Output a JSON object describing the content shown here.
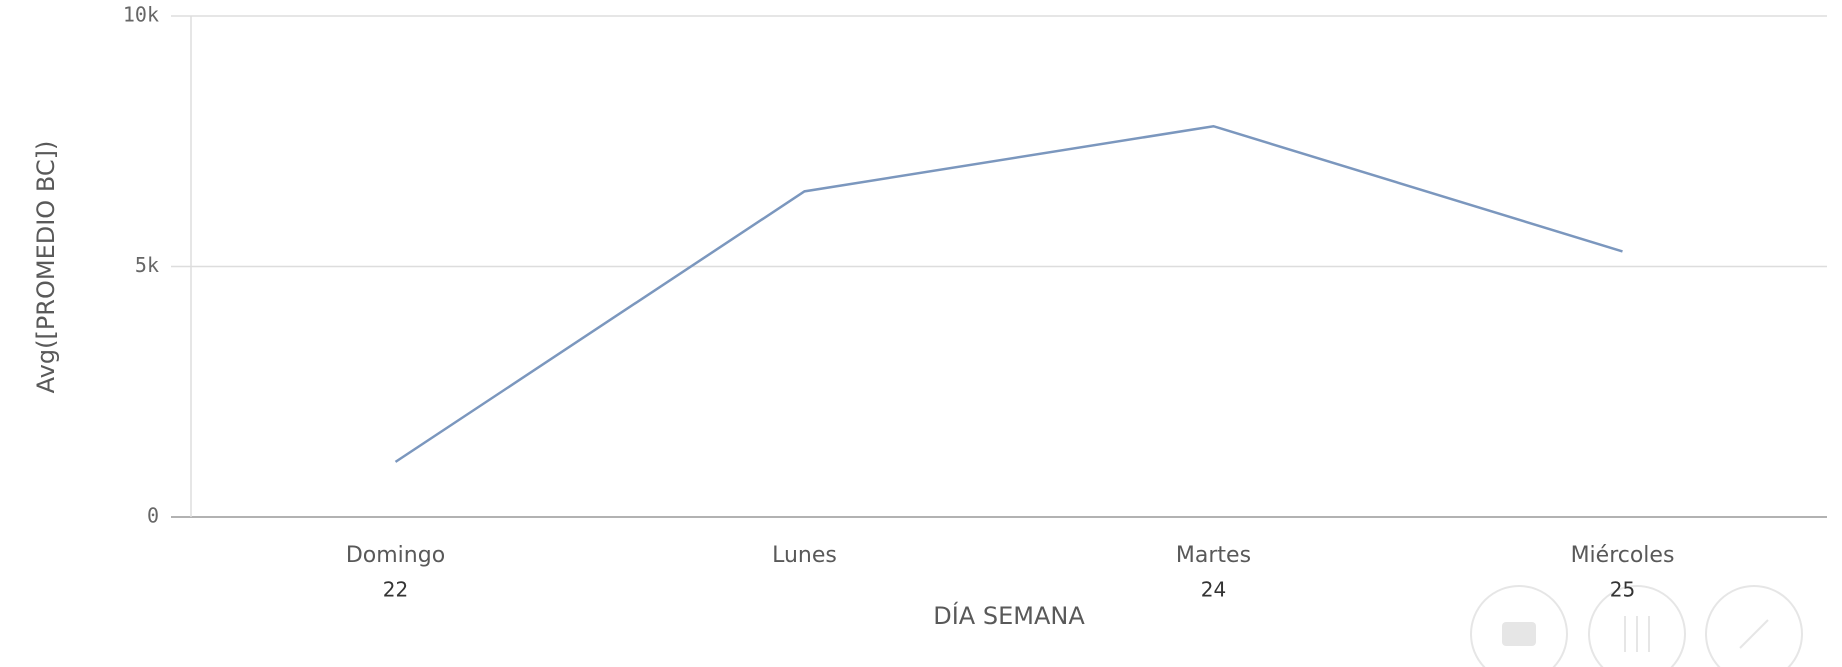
{
  "chart_data": {
    "type": "line",
    "x_label": "DÍA SEMANA",
    "y_label": "Avg([PROMEDIO BC])",
    "categories": [
      "Domingo",
      "Lunes",
      "Martes",
      "Miércoles"
    ],
    "category_sublabels": [
      "22",
      null,
      "24",
      "25"
    ],
    "series": [
      {
        "color": "#7b97be",
        "values": [
          1100,
          6500,
          7800,
          5300
        ]
      }
    ],
    "ylim": [
      0,
      10000
    ],
    "yticks": [
      0,
      {
        "value": 5000,
        "label": "5k"
      },
      {
        "value": 10000,
        "label": "10k"
      }
    ],
    "grid": true
  }
}
